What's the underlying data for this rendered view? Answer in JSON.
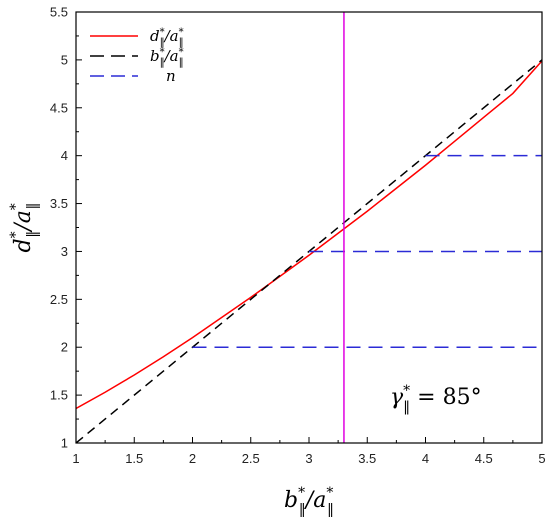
{
  "colors": {
    "d_curve": "#ff0000",
    "b_line": "#000000",
    "n_lines": "#2b2bd6",
    "vertical_line": "#e000e0"
  },
  "chart_data": {
    "type": "line",
    "xlim": [
      1,
      5
    ],
    "ylim": [
      1,
      5.5
    ],
    "x_ticks": [
      "1",
      "1.5",
      "2",
      "2.5",
      "3",
      "3.5",
      "4",
      "4.5",
      "5"
    ],
    "y_ticks": [
      "1",
      "1.5",
      "2",
      "2.5",
      "3",
      "3.5",
      "4",
      "4.5",
      "5",
      "5.5"
    ],
    "xlabel": {
      "main": "b",
      "sup1": "*",
      "sub1": "‖",
      "slash": "/a",
      "sup2": "*",
      "sub2": "‖"
    },
    "ylabel": {
      "main": "d",
      "sup1": "*",
      "sub1": "‖",
      "slash": "/a",
      "sup2": "*",
      "sub2": "‖"
    },
    "grid": false,
    "legend_position": "top-left",
    "legend": [
      {
        "main": "d",
        "sup1": "*",
        "sub1": "‖",
        "slash": "/a",
        "sup2": "*",
        "sub2": "‖",
        "style": "solid",
        "color": "#ff0000"
      },
      {
        "main": "b",
        "sup1": "*",
        "sub1": "‖",
        "slash": "/a",
        "sup2": "*",
        "sub2": "‖",
        "style": "dashed",
        "color": "#000000"
      },
      {
        "main": "n",
        "style": "dashed",
        "color": "#2b2bd6"
      }
    ],
    "series": [
      {
        "style": "solid",
        "color": "#ff0000",
        "x": [
          1.0,
          1.25,
          1.5,
          1.75,
          2.0,
          2.25,
          2.5,
          2.75,
          3.0,
          3.25,
          3.5,
          3.75,
          4.0,
          4.25,
          4.5,
          4.75,
          5.0
        ],
        "y": [
          1.36,
          1.53,
          1.71,
          1.9,
          2.1,
          2.31,
          2.52,
          2.74,
          2.96,
          3.19,
          3.42,
          3.66,
          3.9,
          4.15,
          4.4,
          4.65,
          4.99
        ]
      },
      {
        "style": "dashed",
        "color": "#000000",
        "x": [
          1.0,
          5.0
        ],
        "y": [
          1.0,
          5.0
        ]
      },
      {
        "style": "dashed",
        "color": "#2b2bd6",
        "segments": [
          {
            "x": [
              2.0,
              5.0
            ],
            "y": [
              2.0,
              2.0
            ]
          },
          {
            "x": [
              3.0,
              5.0
            ],
            "y": [
              3.0,
              3.0
            ]
          },
          {
            "x": [
              4.0,
              5.0
            ],
            "y": [
              4.0,
              4.0
            ]
          }
        ]
      }
    ],
    "vertical_line_x": 3.3,
    "annotation": {
      "symbol": "γ",
      "sup": "*",
      "sub": "‖",
      "value": " = 85°",
      "position": "bottom-right"
    }
  }
}
